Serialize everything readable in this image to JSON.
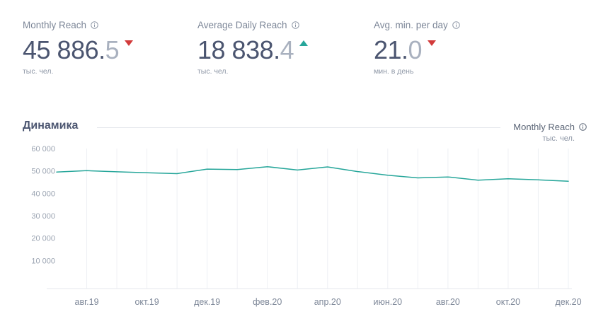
{
  "kpis": [
    {
      "title": "Monthly Reach",
      "int": "45 886.",
      "dec": "5",
      "trend": "down",
      "unit": "тыс. чел."
    },
    {
      "title": "Average Daily Reach",
      "int": "18 838.",
      "dec": "4",
      "trend": "up",
      "unit": "тыс. чел."
    },
    {
      "title": "Avg. min. per day",
      "int": "21.",
      "dec": "0",
      "trend": "down",
      "unit": "мин. в день"
    }
  ],
  "section": {
    "title": "Динамика"
  },
  "legend": {
    "label": "Monthly Reach",
    "unit": "тыс. чел."
  },
  "colors": {
    "line": "#26a69a",
    "up": "#26a69a",
    "down": "#d23b3b"
  },
  "chart_data": {
    "type": "line",
    "x": [
      "2019-07",
      "2019-08",
      "2019-09",
      "2019-10",
      "2019-11",
      "2019-12",
      "2020-01",
      "2020-02",
      "2020-03",
      "2020-04",
      "2020-05",
      "2020-06",
      "2020-07",
      "2020-08",
      "2020-09",
      "2020-10",
      "2020-11",
      "2020-12"
    ],
    "series": [
      {
        "name": "Monthly Reach",
        "values": [
          49500,
          50100,
          49600,
          49200,
          48800,
          50800,
          50600,
          51900,
          50400,
          51800,
          49700,
          48100,
          46900,
          47300,
          45900,
          46500,
          46000,
          45400
        ]
      }
    ],
    "xtick_labels": [
      "авг.19",
      "окт.19",
      "дек.19",
      "фев.20",
      "апр.20",
      "июн.20",
      "авг.20",
      "окт.20",
      "дек.20"
    ],
    "xtick_months": [
      "2019-08",
      "2019-10",
      "2019-12",
      "2020-02",
      "2020-04",
      "2020-06",
      "2020-08",
      "2020-10",
      "2020-12"
    ],
    "ytick_labels": [
      "60 000",
      "50 000",
      "40 000",
      "30 000",
      "20 000",
      "10 000"
    ],
    "ytick_values": [
      60000,
      50000,
      40000,
      30000,
      20000,
      10000
    ],
    "ylim": [
      0,
      60000
    ],
    "grid": "vertical"
  }
}
